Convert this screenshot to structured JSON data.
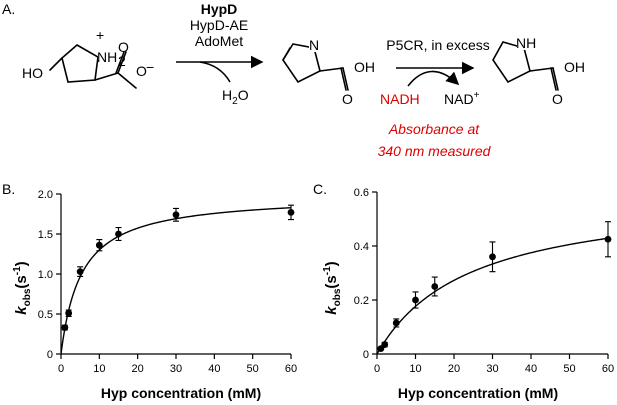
{
  "scheme": {
    "panel_label": "A.",
    "enzyme1": "HypD",
    "enzyme1_cofactor1": "HypD-AE",
    "enzyme1_cofactor2": "AdoMet",
    "byproduct1": "H",
    "byproduct1_sub": "2",
    "byproduct1_tail": "O",
    "enzyme2": "P5CR, in excess",
    "reagent": "NADH",
    "product_cofactor": "NAD",
    "product_cofactor_sup": "+",
    "detection_line1": "Absorbance at",
    "detection_line2": "340 nm measured",
    "colors": {
      "highlight": "#e00000"
    }
  },
  "chart_data": [
    {
      "type": "scatter",
      "panel_label": "B.",
      "xlabel": "Hyp concentration (mM)",
      "ylabel_main": "k",
      "ylabel_sub": "obs",
      "ylabel_unit": "(s",
      "ylabel_unit_sup": "-1",
      "ylabel_unit_close": ")",
      "xlim": [
        0,
        60
      ],
      "ylim": [
        0,
        2.0
      ],
      "xticks": [
        0,
        10,
        20,
        30,
        40,
        50,
        60
      ],
      "yticks": [
        0,
        0.5,
        1.0,
        1.5,
        2.0
      ],
      "ytick_labels": [
        "0",
        "0.5",
        "1.0",
        "1.5",
        "2.0"
      ],
      "points": [
        {
          "x": 1,
          "y": 0.33,
          "err": 0.03
        },
        {
          "x": 2,
          "y": 0.51,
          "err": 0.04
        },
        {
          "x": 5,
          "y": 1.03,
          "err": 0.06
        },
        {
          "x": 10,
          "y": 1.36,
          "err": 0.07
        },
        {
          "x": 15,
          "y": 1.5,
          "err": 0.08
        },
        {
          "x": 30,
          "y": 1.74,
          "err": 0.08
        },
        {
          "x": 60,
          "y": 1.77,
          "err": 0.09
        }
      ],
      "fit": {
        "vmax": 1.99,
        "km": 5.3
      }
    },
    {
      "type": "scatter",
      "panel_label": "C.",
      "xlabel": "Hyp concentration (mM)",
      "ylabel_main": "k",
      "ylabel_sub": "obs",
      "ylabel_unit": "(s",
      "ylabel_unit_sup": "-1",
      "ylabel_unit_close": ")",
      "xlim": [
        0,
        60
      ],
      "ylim": [
        0,
        0.6
      ],
      "xticks": [
        0,
        10,
        20,
        30,
        40,
        50,
        60
      ],
      "yticks": [
        0,
        0.2,
        0.4,
        0.6
      ],
      "ytick_labels": [
        "0",
        "0.2",
        "0.4",
        "0.6"
      ],
      "points": [
        {
          "x": 1,
          "y": 0.02,
          "err": 0.005
        },
        {
          "x": 2,
          "y": 0.035,
          "err": 0.008
        },
        {
          "x": 5,
          "y": 0.115,
          "err": 0.015
        },
        {
          "x": 10,
          "y": 0.2,
          "err": 0.03
        },
        {
          "x": 15,
          "y": 0.25,
          "err": 0.035
        },
        {
          "x": 30,
          "y": 0.36,
          "err": 0.055
        },
        {
          "x": 60,
          "y": 0.425,
          "err": 0.065
        }
      ],
      "fit": {
        "vmax": 0.6,
        "km": 24
      }
    }
  ]
}
